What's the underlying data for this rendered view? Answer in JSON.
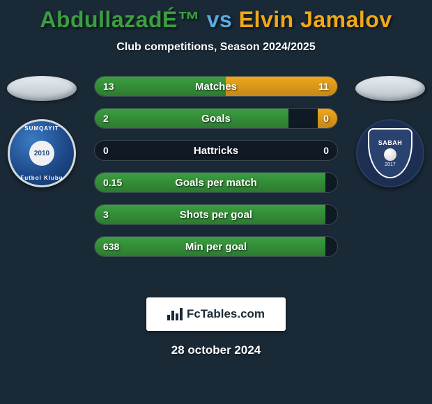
{
  "title": {
    "player1": "AbdullazadÉ™",
    "vs": "vs",
    "player2": "Elvin Jamalov",
    "player1_color": "#3a9f3f",
    "vs_color": "#5aa9e0",
    "player2_color": "#f0a818"
  },
  "subtitle": "Club competitions, Season 2024/2025",
  "player_left": {
    "oval_color": "#e8eef2",
    "badge_top_text": "SUMQAYIT",
    "badge_year": "2010",
    "badge_bottom_text": "Futbol Klubu"
  },
  "player_right": {
    "oval_color": "#e8eef2",
    "shield_text": "SABAH",
    "shield_year": "2017"
  },
  "stats": [
    {
      "label": "Matches",
      "left_val": "13",
      "right_val": "11",
      "left_pct": 54,
      "right_pct": 46
    },
    {
      "label": "Goals",
      "left_val": "2",
      "right_val": "0",
      "left_pct": 80,
      "right_pct": 8
    },
    {
      "label": "Hattricks",
      "left_val": "0",
      "right_val": "0",
      "left_pct": 0,
      "right_pct": 0
    },
    {
      "label": "Goals per match",
      "left_val": "0.15",
      "right_val": "",
      "left_pct": 95,
      "right_pct": 0
    },
    {
      "label": "Shots per goal",
      "left_val": "3",
      "right_val": "",
      "left_pct": 95,
      "right_pct": 0
    },
    {
      "label": "Min per goal",
      "left_val": "638",
      "right_val": "",
      "left_pct": 95,
      "right_pct": 0
    }
  ],
  "colors": {
    "background": "#1a2936",
    "bar_left": "#3a9f3f",
    "bar_right": "#f0a818",
    "row_bg": "#0f1a24",
    "row_border": "#3a4651",
    "text": "#ffffff"
  },
  "footer": {
    "brand": "FcTables.com",
    "date": "28 october 2024"
  }
}
